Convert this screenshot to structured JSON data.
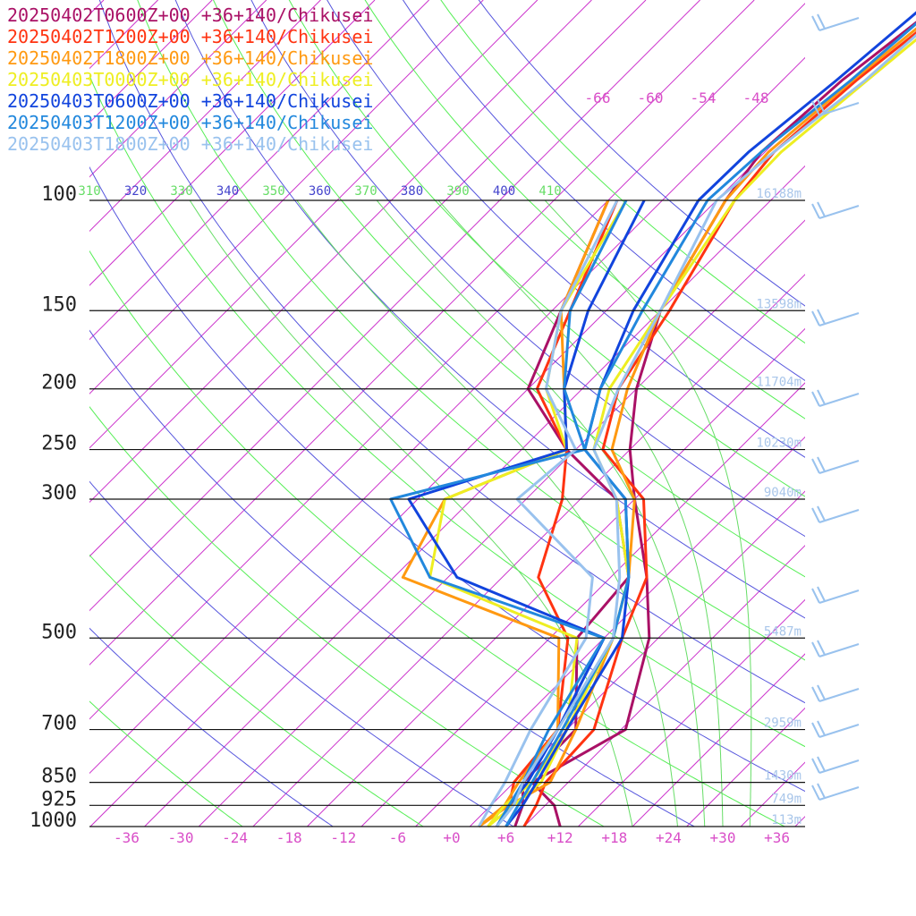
{
  "chart_data": {
    "type": "line",
    "title": "",
    "xlabel": "",
    "ylabel": "",
    "x_ticks": [
      "-36",
      "-30",
      "-24",
      "-18",
      "-12",
      "-6",
      "+0",
      "+6",
      "+12",
      "+18",
      "+24",
      "+30",
      "+36"
    ],
    "pressure_levels": [
      100,
      150,
      200,
      250,
      300,
      500,
      700,
      850,
      925,
      1000
    ],
    "height_labels": [
      {
        "p": 100,
        "label": "16188m"
      },
      {
        "p": 150,
        "label": "13598m"
      },
      {
        "p": 200,
        "label": "11704m"
      },
      {
        "p": 250,
        "label": "10230m"
      },
      {
        "p": 300,
        "label": "9040m"
      },
      {
        "p": 500,
        "label": "5487m"
      },
      {
        "p": 700,
        "label": "2959m"
      },
      {
        "p": 850,
        "label": "1430m"
      },
      {
        "p": 925,
        "label": "749m"
      },
      {
        "p": 1000,
        "label": "113m"
      }
    ],
    "theta_labels": [
      "310",
      "320",
      "330",
      "340",
      "350",
      "360",
      "370",
      "380",
      "390",
      "400",
      "410"
    ],
    "mixing_ratio_labels": [
      "-66",
      "-60",
      "-54",
      "-48"
    ],
    "grid": true,
    "legend_position": "top-left",
    "series": [
      {
        "name": "20250402T0600Z+00 +36+140/Chikusei",
        "color": "#aa1166",
        "temp": [
          [
            1000,
            12
          ],
          [
            925,
            9
          ],
          [
            850,
            4
          ],
          [
            700,
            8.5
          ],
          [
            500,
            1
          ],
          [
            400,
            -6
          ],
          [
            300,
            -16
          ],
          [
            250,
            -22
          ],
          [
            200,
            -28
          ],
          [
            150,
            -34
          ],
          [
            100,
            -39
          ]
        ],
        "dew": [
          [
            1000,
            7
          ],
          [
            925,
            5.5
          ],
          [
            850,
            3
          ],
          [
            700,
            3
          ],
          [
            500,
            -7
          ],
          [
            400,
            -8
          ],
          [
            300,
            -18
          ],
          [
            250,
            -29
          ],
          [
            200,
            -40
          ],
          [
            150,
            -45
          ],
          [
            100,
            -52
          ]
        ]
      },
      {
        "name": "20250402T1200Z+00 +36+140/Chikusei",
        "color": "#ff3311",
        "temp": [
          [
            1000,
            8
          ],
          [
            925,
            7
          ],
          [
            850,
            5.5
          ],
          [
            700,
            5
          ],
          [
            500,
            -2
          ],
          [
            400,
            -6
          ],
          [
            300,
            -15
          ],
          [
            250,
            -25
          ],
          [
            200,
            -30
          ],
          [
            150,
            -33
          ],
          [
            100,
            -38
          ]
        ],
        "dew": [
          [
            1000,
            5
          ],
          [
            925,
            4
          ],
          [
            850,
            2
          ],
          [
            700,
            1
          ],
          [
            500,
            -8
          ],
          [
            400,
            -18
          ],
          [
            300,
            -24
          ],
          [
            250,
            -29
          ],
          [
            200,
            -39
          ],
          [
            150,
            -44
          ],
          [
            100,
            -51
          ]
        ]
      },
      {
        "name": "20250402T1800Z+00 +36+140/Chikusei",
        "color": "#ff9911",
        "temp": [
          [
            1000,
            3
          ],
          [
            925,
            4
          ],
          [
            850,
            6
          ],
          [
            700,
            3
          ],
          [
            500,
            -3
          ],
          [
            400,
            -8
          ],
          [
            300,
            -16
          ],
          [
            250,
            -24
          ],
          [
            200,
            -29
          ],
          [
            150,
            -34
          ],
          [
            100,
            -39
          ]
        ],
        "dew": [
          [
            1000,
            3
          ],
          [
            925,
            3.5
          ],
          [
            850,
            2.5
          ],
          [
            700,
            1
          ],
          [
            500,
            -9
          ],
          [
            400,
            -33
          ],
          [
            300,
            -37
          ],
          [
            250,
            -29
          ],
          [
            200,
            -36
          ],
          [
            150,
            -45
          ],
          [
            100,
            -52
          ]
        ]
      },
      {
        "name": "20250403T0000Z+00 +36+140/Chikusei",
        "color": "#eeee22",
        "temp": [
          [
            1000,
            4
          ],
          [
            925,
            4.5
          ],
          [
            850,
            5
          ],
          [
            700,
            2
          ],
          [
            500,
            -3
          ],
          [
            400,
            -8
          ],
          [
            300,
            -18
          ],
          [
            250,
            -26
          ],
          [
            200,
            -31
          ],
          [
            150,
            -34
          ],
          [
            100,
            -38
          ]
        ],
        "dew": [
          [
            1000,
            4
          ],
          [
            925,
            3.5
          ],
          [
            850,
            4
          ],
          [
            700,
            2
          ],
          [
            500,
            -7
          ],
          [
            400,
            -30
          ],
          [
            300,
            -37
          ],
          [
            250,
            -29
          ],
          [
            200,
            -38
          ],
          [
            150,
            -45
          ],
          [
            100,
            -50
          ]
        ]
      },
      {
        "name": "20250403T0600Z+00 +36+140/Chikusei",
        "color": "#1144dd",
        "temp": [
          [
            1000,
            6
          ],
          [
            925,
            5.5
          ],
          [
            850,
            4.5
          ],
          [
            700,
            2
          ],
          [
            500,
            -2
          ],
          [
            400,
            -8
          ],
          [
            300,
            -17
          ],
          [
            250,
            -27
          ],
          [
            200,
            -32
          ],
          [
            150,
            -37
          ],
          [
            100,
            -42
          ]
        ],
        "dew": [
          [
            1000,
            5
          ],
          [
            925,
            4
          ],
          [
            850,
            3.5
          ],
          [
            700,
            1
          ],
          [
            500,
            -4
          ],
          [
            400,
            -27
          ],
          [
            300,
            -41
          ],
          [
            250,
            -29
          ],
          [
            200,
            -36
          ],
          [
            150,
            -42
          ],
          [
            100,
            -48
          ]
        ]
      },
      {
        "name": "20250403T1200Z+00 +36+140/Chikusei",
        "color": "#2288dd",
        "temp": [
          [
            1000,
            6
          ],
          [
            925,
            5
          ],
          [
            850,
            4
          ],
          [
            700,
            1.5
          ],
          [
            500,
            -3
          ],
          [
            400,
            -8
          ],
          [
            300,
            -17
          ],
          [
            250,
            -27
          ],
          [
            200,
            -32
          ],
          [
            150,
            -36
          ],
          [
            100,
            -41
          ]
        ],
        "dew": [
          [
            1000,
            5
          ],
          [
            925,
            4
          ],
          [
            850,
            3
          ],
          [
            700,
            0
          ],
          [
            500,
            -4
          ],
          [
            400,
            -30
          ],
          [
            300,
            -43
          ],
          [
            250,
            -27
          ],
          [
            200,
            -36
          ],
          [
            150,
            -44
          ],
          [
            100,
            -50
          ]
        ]
      },
      {
        "name": "20250403T1800Z+00 +36+140/Chikusei",
        "color": "#99c2ee",
        "temp": [
          [
            1000,
            5
          ],
          [
            925,
            4.5
          ],
          [
            850,
            3
          ],
          [
            700,
            1
          ],
          [
            500,
            -3
          ],
          [
            400,
            -9
          ],
          [
            300,
            -18
          ],
          [
            250,
            -26
          ],
          [
            200,
            -30
          ],
          [
            150,
            -34
          ],
          [
            100,
            -40
          ]
        ],
        "dew": [
          [
            1000,
            3
          ],
          [
            925,
            2
          ],
          [
            850,
            1
          ],
          [
            700,
            -2
          ],
          [
            500,
            -6
          ],
          [
            400,
            -12
          ],
          [
            300,
            -29
          ],
          [
            250,
            -28
          ],
          [
            200,
            -38
          ],
          [
            150,
            -45
          ],
          [
            100,
            -51
          ]
        ]
      }
    ]
  }
}
